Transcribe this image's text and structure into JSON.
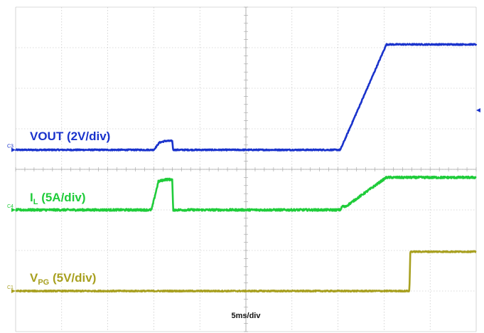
{
  "chart_data": {
    "type": "line",
    "grid": true,
    "x_divisions": 10,
    "y_divisions": 8,
    "timebase_label": "5ms/div",
    "series": [
      {
        "name": "VOUT (2V/div)",
        "label_main": "VOUT (2V/div)",
        "label_sub": "",
        "label_tail": "",
        "channel": "C3",
        "color": "#1a33cc",
        "ground_div": 4.48,
        "noise_div": 0.03,
        "points": [
          [
            0.0,
            0.0
          ],
          [
            3.0,
            0.0
          ],
          [
            3.12,
            0.18
          ],
          [
            3.25,
            0.22
          ],
          [
            3.4,
            0.22
          ],
          [
            3.42,
            0.0
          ],
          [
            7.05,
            0.0
          ],
          [
            8.05,
            2.6
          ],
          [
            10.0,
            2.6
          ]
        ]
      },
      {
        "name": "I_L (5A/div)",
        "label_main": "I",
        "label_sub": "L",
        "label_tail": " (5A/div)",
        "channel": "C4",
        "color": "#1fcc3a",
        "ground_div": 3.0,
        "noise_div": 0.05,
        "points": [
          [
            0.0,
            0.0
          ],
          [
            2.95,
            0.0
          ],
          [
            3.1,
            0.7
          ],
          [
            3.25,
            0.75
          ],
          [
            3.4,
            0.75
          ],
          [
            3.42,
            0.0
          ],
          [
            7.05,
            0.0
          ],
          [
            7.1,
            0.1
          ],
          [
            7.15,
            0.07
          ],
          [
            8.05,
            0.8
          ],
          [
            10.0,
            0.8
          ]
        ]
      },
      {
        "name": "V_PG (5V/div)",
        "label_main": "V",
        "label_sub": "PG",
        "label_tail": " (5V/div)",
        "channel": "C1",
        "color": "#a8a020",
        "ground_div": 1.0,
        "noise_div": 0.03,
        "points": [
          [
            0.0,
            0.0
          ],
          [
            8.55,
            0.0
          ],
          [
            8.57,
            0.97
          ],
          [
            10.0,
            0.97
          ]
        ]
      }
    ]
  }
}
